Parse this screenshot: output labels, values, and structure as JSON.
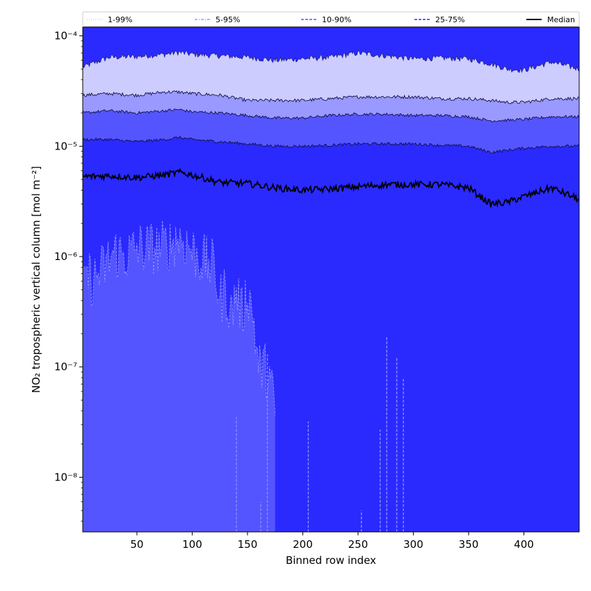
{
  "chart_data": {
    "type": "area",
    "xlabel": "Binned row index",
    "ylabel": "NO₂ tropospheric vertical column [mol m⁻²]",
    "xlim": [
      1,
      450
    ],
    "ylim": [
      3.2e-09,
      0.00012
    ],
    "yscale": "log",
    "x_ticks": [
      50,
      100,
      150,
      200,
      250,
      300,
      350,
      400
    ],
    "y_ticks": [
      {
        "value": 1e-08,
        "label": "10⁻⁸"
      },
      {
        "value": 1e-07,
        "label": "10⁻⁷"
      },
      {
        "value": 1e-06,
        "label": "10⁻⁶"
      },
      {
        "value": 1e-05,
        "label": "10⁻⁵"
      },
      {
        "value": 0.0001,
        "label": "10⁻⁴"
      }
    ],
    "grid": false,
    "legend_position": "top",
    "legend": [
      {
        "label": "1-99%",
        "color": "#ccccff",
        "style": "dotted"
      },
      {
        "label": "5-95%",
        "color": "#9999ff",
        "style": "dashdot"
      },
      {
        "label": "10-90%",
        "color": "#5555ff",
        "style": "dashed"
      },
      {
        "label": "25-75%",
        "color": "#2a2aff",
        "style": "dashed"
      },
      {
        "label": "Median",
        "color": "#000000",
        "style": "solid"
      }
    ],
    "x_knots": [
      1,
      25,
      50,
      75,
      88,
      100,
      125,
      150,
      175,
      200,
      225,
      250,
      275,
      300,
      325,
      350,
      370,
      385,
      400,
      425,
      450
    ],
    "series": [
      {
        "name": "1-99%",
        "upper": [
          5.2e-05,
          6.4e-05,
          6.5e-05,
          6.8e-05,
          7.1e-05,
          6.8e-05,
          6.6e-05,
          6.4e-05,
          6e-05,
          6.2e-05,
          6.4e-05,
          7e-05,
          6.6e-05,
          6.2e-05,
          6.3e-05,
          6.2e-05,
          5.6e-05,
          5e-05,
          4.9e-05,
          5.8e-05,
          5e-05
        ]
      },
      {
        "name": "5-95%",
        "upper": [
          2.9e-05,
          3e-05,
          2.9e-05,
          3.1e-05,
          3.1e-05,
          3e-05,
          2.9e-05,
          2.6e-05,
          2.6e-05,
          2.6e-05,
          2.7e-05,
          2.8e-05,
          2.8e-05,
          2.8e-05,
          2.7e-05,
          2.7e-05,
          2.6e-05,
          2.5e-05,
          2.5e-05,
          2.7e-05,
          2.7e-05
        ]
      },
      {
        "name": "10-90%",
        "upper": [
          2e-05,
          2.1e-05,
          2e-05,
          2.1e-05,
          2.15e-05,
          2.05e-05,
          2e-05,
          1.9e-05,
          1.8e-05,
          1.8e-05,
          1.9e-05,
          1.95e-05,
          1.95e-05,
          1.9e-05,
          1.9e-05,
          1.85e-05,
          1.7e-05,
          1.72e-05,
          1.75e-05,
          1.85e-05,
          1.85e-05
        ]
      },
      {
        "name": "25-75%",
        "upper": [
          1.15e-05,
          1.15e-05,
          1.1e-05,
          1.15e-05,
          1.2e-05,
          1.15e-05,
          1.1e-05,
          1.05e-05,
          1e-05,
          1e-05,
          1.02e-05,
          1.05e-05,
          1.05e-05,
          1.05e-05,
          1.02e-05,
          1e-05,
          8.8e-06,
          9.2e-06,
          9.6e-06,
          1e-05,
          1e-05
        ]
      },
      {
        "name": "Median",
        "values": [
          5.3e-06,
          5.4e-06,
          5.2e-06,
          5.5e-06,
          5.8e-06,
          5.5e-06,
          4.7e-06,
          4.6e-06,
          4.2e-06,
          4e-06,
          4.1e-06,
          4.3e-06,
          4.5e-06,
          4.5e-06,
          4.5e-06,
          4.2e-06,
          3e-06,
          3.1e-06,
          3.5e-06,
          4.2e-06,
          3.3e-06
        ]
      }
    ],
    "lower_1pct_region": {
      "x": [
        5,
        10,
        20,
        30,
        40,
        50,
        60,
        70,
        80,
        87,
        95,
        105,
        112,
        120,
        125,
        130,
        135,
        140,
        145,
        150,
        155,
        160,
        165,
        170,
        175
      ],
      "y": [
        7e-07,
        6e-07,
        8e-07,
        1.1e-06,
        1e-06,
        1.2e-06,
        1.2e-06,
        1.2e-06,
        1.3e-06,
        1.5e-06,
        1.3e-06,
        1e-06,
        9e-07,
        8e-07,
        4e-07,
        5e-07,
        3e-07,
        5e-07,
        3e-07,
        5e-07,
        3e-07,
        1e-07,
        1e-07,
        8e-08,
        4e-08
      ]
    },
    "lower_1pct_spikes": [
      {
        "x": 140,
        "y": 3.5e-08
      },
      {
        "x": 162,
        "y": 6e-09
      },
      {
        "x": 168,
        "y": 1.3e-07
      },
      {
        "x": 205,
        "y": 3.2e-08
      },
      {
        "x": 253,
        "y": 5e-09
      },
      {
        "x": 270,
        "y": 2.7e-08
      },
      {
        "x": 276,
        "y": 1.9e-07
      },
      {
        "x": 285,
        "y": 1.2e-07
      },
      {
        "x": 291,
        "y": 8e-08
      }
    ]
  }
}
